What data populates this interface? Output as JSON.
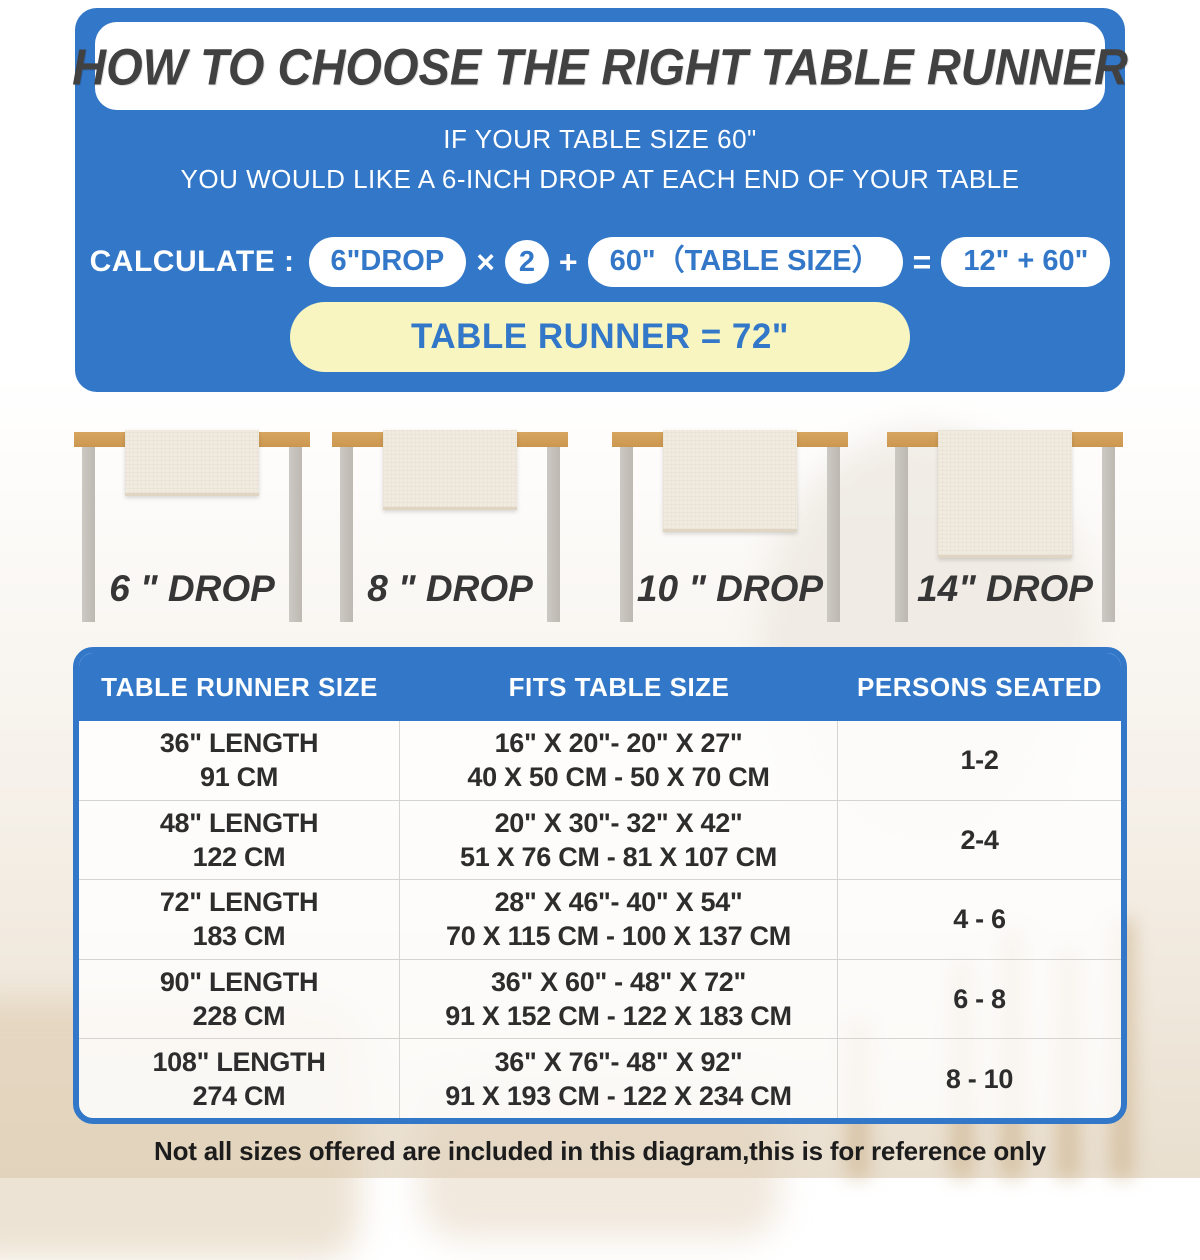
{
  "header": {
    "title": "HOW TO CHOOSE THE RIGHT TABLE RUNNER",
    "subtitle_line1": "IF YOUR TABLE SIZE 60\"",
    "subtitle_line2": "YOU WOULD LIKE A 6-INCH DROP AT EACH END OF YOUR TABLE",
    "calc": {
      "label": "CALCULATE :",
      "drop_pill": "6\"DROP",
      "times_sign": "×",
      "multiplier": "2",
      "plus_sign": "+",
      "table_size_pill": "60\"（TABLE SIZE）",
      "equals_sign": "=",
      "result_pill": "12\" + 60\"",
      "runner_result": "TABLE RUNNER = 72\""
    }
  },
  "drops": [
    {
      "label": "6 \" DROP",
      "inches": 6
    },
    {
      "label": "8 \" DROP",
      "inches": 8
    },
    {
      "label": "10 \" DROP",
      "inches": 10
    },
    {
      "label": "14\" DROP",
      "inches": 14
    }
  ],
  "size_table": {
    "columns": [
      "TABLE RUNNER SIZE",
      "FITS TABLE SIZE",
      "PERSONS SEATED"
    ],
    "rows": [
      {
        "runner_in": "36\" LENGTH",
        "runner_cm": "91 CM",
        "fits_in": "16\" X 20\"- 20\" X 27\"",
        "fits_cm": "40 X 50 CM - 50 X 70 CM",
        "persons": "1-2"
      },
      {
        "runner_in": "48\" LENGTH",
        "runner_cm": "122 CM",
        "fits_in": "20\" X 30\"- 32\" X 42\"",
        "fits_cm": "51 X 76 CM - 81 X 107 CM",
        "persons": "2-4"
      },
      {
        "runner_in": "72\" LENGTH",
        "runner_cm": "183 CM",
        "fits_in": "28\" X 46\"- 40\" X 54\"",
        "fits_cm": "70 X 115 CM - 100 X 137 CM",
        "persons": "4 - 6"
      },
      {
        "runner_in": "90\" LENGTH",
        "runner_cm": "228 CM",
        "fits_in": "36\" X 60\" - 48\" X 72\"",
        "fits_cm": "91 X 152 CM - 122 X 183 CM",
        "persons": "6 - 8"
      },
      {
        "runner_in": "108\" LENGTH",
        "runner_cm": "274 CM",
        "fits_in": "36\" X 76\"- 48\" X 92\"",
        "fits_cm": "91 X 193 CM - 122 X 234 CM",
        "persons": "8 - 10"
      }
    ]
  },
  "footer": {
    "note": "Not all sizes offered are included in this diagram,this is for reference only"
  },
  "colors": {
    "accent_blue": "#3277C8",
    "result_yellow": "#F8F5C1",
    "wood_tan": "#D2A05C",
    "runner_cream": "#F1EBDF",
    "title_gray": "#414141"
  }
}
